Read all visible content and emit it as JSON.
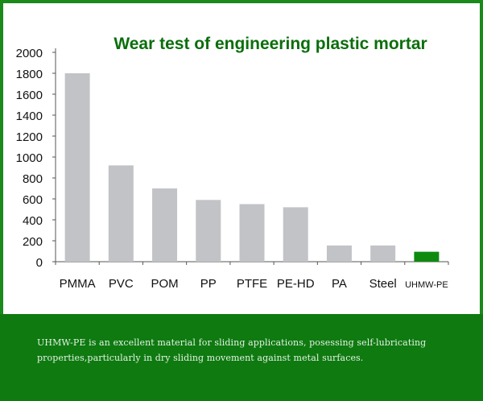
{
  "colors": {
    "frame": "#1a8a1a",
    "title": "#0b6e0b",
    "bar_default": "#c2c3c6",
    "bar_highlight": "#0f8a0f",
    "caption_background": "#0e7a10",
    "caption_text": "#e6f2e6"
  },
  "chart_data": {
    "type": "bar",
    "title": "Wear test of engineering plastic mortar",
    "xlabel": "",
    "ylabel": "",
    "ylim": [
      0,
      2000
    ],
    "yticks": [
      "0",
      "200",
      "400",
      "600",
      "800",
      "1000",
      "1200",
      "1400",
      "1600",
      "1800",
      "2000"
    ],
    "categories": [
      "PMMA",
      "PVC",
      "POM",
      "PP",
      "PTFE",
      "PE-HD",
      "PA",
      "Steel",
      "UHMW-PE"
    ],
    "values": [
      1800,
      920,
      700,
      590,
      550,
      520,
      155,
      155,
      95
    ],
    "highlight": "UHMW-PE",
    "grid": false,
    "legend": "none"
  },
  "caption": {
    "text": "UHMW-PE is an excellent material for sliding applications, posessing self-lubricating properties,particularly in dry sliding movement against metal surfaces."
  }
}
